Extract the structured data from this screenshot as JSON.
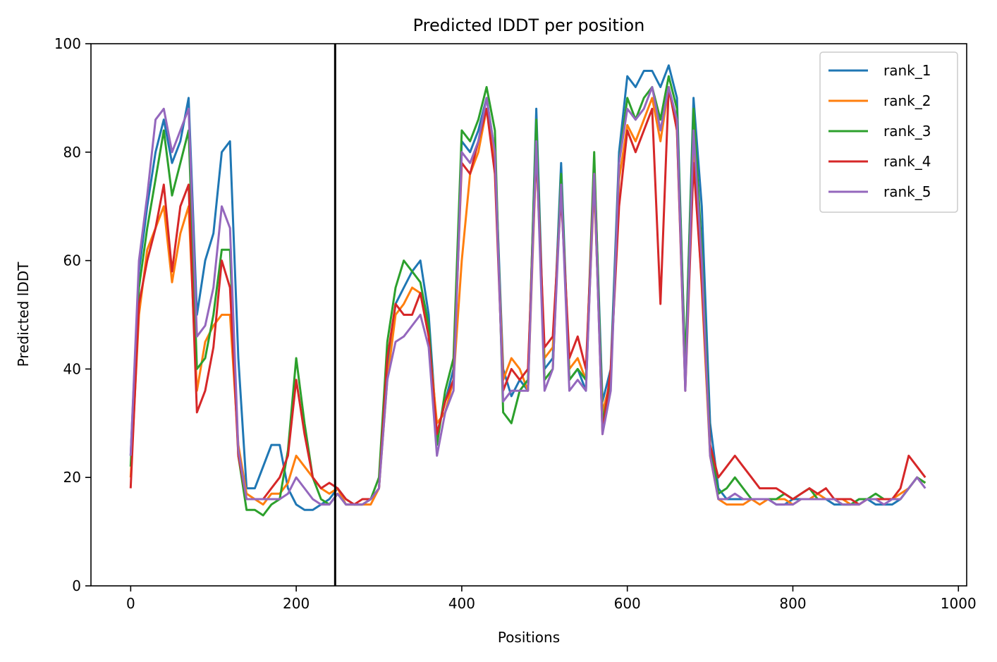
{
  "chart_data": {
    "type": "line",
    "title": "Predicted lDDT per position",
    "xlabel": "Positions",
    "ylabel": "Predicted lDDT",
    "xlim": [
      -48,
      1010
    ],
    "ylim": [
      0,
      100
    ],
    "xticks": [
      0,
      200,
      400,
      600,
      800,
      1000
    ],
    "yticks": [
      0,
      20,
      40,
      60,
      80,
      100
    ],
    "grid": false,
    "legend_position": "top-right",
    "annotations": [
      {
        "type": "vertical-line",
        "x": 247,
        "color": "#000000"
      }
    ],
    "x": [
      0,
      10,
      20,
      30,
      40,
      50,
      60,
      70,
      80,
      90,
      100,
      110,
      120,
      130,
      140,
      150,
      160,
      170,
      180,
      190,
      200,
      210,
      220,
      230,
      240,
      250,
      260,
      270,
      280,
      290,
      300,
      310,
      320,
      330,
      340,
      350,
      360,
      370,
      380,
      390,
      400,
      410,
      420,
      430,
      440,
      450,
      460,
      470,
      480,
      490,
      500,
      510,
      520,
      530,
      540,
      550,
      560,
      570,
      580,
      590,
      600,
      610,
      620,
      630,
      640,
      650,
      660,
      670,
      680,
      690,
      700,
      710,
      720,
      730,
      740,
      750,
      760,
      770,
      780,
      790,
      800,
      810,
      820,
      830,
      840,
      850,
      860,
      870,
      880,
      890,
      900,
      910,
      920,
      930,
      940,
      950,
      960
    ],
    "series": [
      {
        "name": "rank_1",
        "color": "#1f77b4",
        "values": [
          24,
          58,
          70,
          80,
          86,
          78,
          82,
          90,
          50,
          60,
          65,
          80,
          82,
          42,
          18,
          18,
          22,
          26,
          26,
          18,
          15,
          14,
          14,
          15,
          16,
          18,
          16,
          15,
          15,
          16,
          18,
          40,
          52,
          55,
          58,
          60,
          50,
          28,
          34,
          40,
          82,
          80,
          84,
          90,
          80,
          40,
          35,
          38,
          36,
          88,
          40,
          42,
          78,
          38,
          40,
          36,
          78,
          34,
          40,
          80,
          94,
          92,
          95,
          95,
          92,
          96,
          90,
          40,
          90,
          70,
          30,
          18,
          16,
          16,
          16,
          16,
          16,
          16,
          15,
          15,
          16,
          16,
          16,
          16,
          16,
          15,
          15,
          15,
          16,
          16,
          15,
          15,
          15,
          16,
          18,
          20,
          19
        ]
      },
      {
        "name": "rank_2",
        "color": "#ff7f0e",
        "values": [
          20,
          50,
          62,
          66,
          70,
          56,
          65,
          70,
          36,
          45,
          48,
          50,
          50,
          26,
          17,
          16,
          15,
          17,
          17,
          19,
          24,
          22,
          20,
          18,
          17,
          18,
          15,
          15,
          15,
          15,
          18,
          38,
          50,
          52,
          55,
          54,
          46,
          30,
          32,
          38,
          60,
          76,
          80,
          88,
          78,
          38,
          42,
          40,
          36,
          80,
          42,
          44,
          74,
          40,
          42,
          38,
          74,
          32,
          38,
          75,
          85,
          82,
          86,
          90,
          82,
          92,
          84,
          38,
          82,
          55,
          24,
          16,
          15,
          15,
          15,
          16,
          15,
          16,
          16,
          16,
          15,
          16,
          16,
          17,
          16,
          16,
          16,
          15,
          15,
          16,
          16,
          16,
          16,
          17,
          18,
          20,
          19
        ]
      },
      {
        "name": "rank_3",
        "color": "#2ca02c",
        "values": [
          22,
          55,
          66,
          75,
          84,
          72,
          78,
          84,
          40,
          42,
          50,
          62,
          62,
          24,
          14,
          14,
          13,
          15,
          16,
          25,
          42,
          30,
          20,
          16,
          15,
          17,
          15,
          15,
          15,
          16,
          20,
          45,
          55,
          60,
          58,
          56,
          48,
          26,
          36,
          42,
          84,
          82,
          86,
          92,
          84,
          32,
          30,
          36,
          38,
          86,
          38,
          40,
          76,
          38,
          40,
          38,
          80,
          30,
          38,
          78,
          90,
          86,
          90,
          92,
          86,
          94,
          88,
          40,
          88,
          62,
          26,
          17,
          18,
          20,
          18,
          16,
          16,
          16,
          16,
          17,
          16,
          17,
          18,
          16,
          16,
          16,
          15,
          15,
          16,
          16,
          17,
          16,
          16,
          16,
          18,
          20,
          19
        ]
      },
      {
        "name": "rank_4",
        "color": "#d62728",
        "values": [
          18,
          52,
          60,
          66,
          74,
          58,
          70,
          74,
          32,
          36,
          44,
          60,
          55,
          24,
          16,
          16,
          16,
          18,
          20,
          24,
          38,
          28,
          20,
          18,
          19,
          18,
          16,
          15,
          16,
          16,
          18,
          42,
          52,
          50,
          50,
          54,
          46,
          28,
          34,
          38,
          78,
          76,
          82,
          88,
          76,
          36,
          40,
          38,
          40,
          80,
          44,
          46,
          72,
          42,
          46,
          40,
          76,
          28,
          40,
          70,
          84,
          80,
          84,
          88,
          52,
          92,
          84,
          36,
          78,
          56,
          26,
          20,
          22,
          24,
          22,
          20,
          18,
          18,
          18,
          17,
          16,
          17,
          18,
          17,
          18,
          16,
          16,
          16,
          15,
          16,
          16,
          16,
          16,
          18,
          24,
          22,
          20
        ]
      },
      {
        "name": "rank_5",
        "color": "#9467bd",
        "values": [
          24,
          60,
          72,
          86,
          88,
          80,
          84,
          88,
          46,
          48,
          55,
          70,
          66,
          25,
          16,
          16,
          16,
          16,
          16,
          17,
          20,
          18,
          16,
          15,
          15,
          17,
          15,
          15,
          15,
          16,
          18,
          38,
          45,
          46,
          48,
          50,
          44,
          24,
          32,
          36,
          80,
          78,
          82,
          90,
          80,
          34,
          36,
          36,
          36,
          82,
          36,
          40,
          74,
          36,
          38,
          36,
          76,
          28,
          36,
          78,
          88,
          86,
          88,
          92,
          84,
          92,
          86,
          36,
          84,
          60,
          24,
          16,
          16,
          17,
          16,
          16,
          16,
          16,
          15,
          15,
          15,
          16,
          16,
          16,
          16,
          16,
          15,
          15,
          15,
          16,
          16,
          15,
          16,
          16,
          18,
          20,
          18
        ]
      }
    ]
  }
}
